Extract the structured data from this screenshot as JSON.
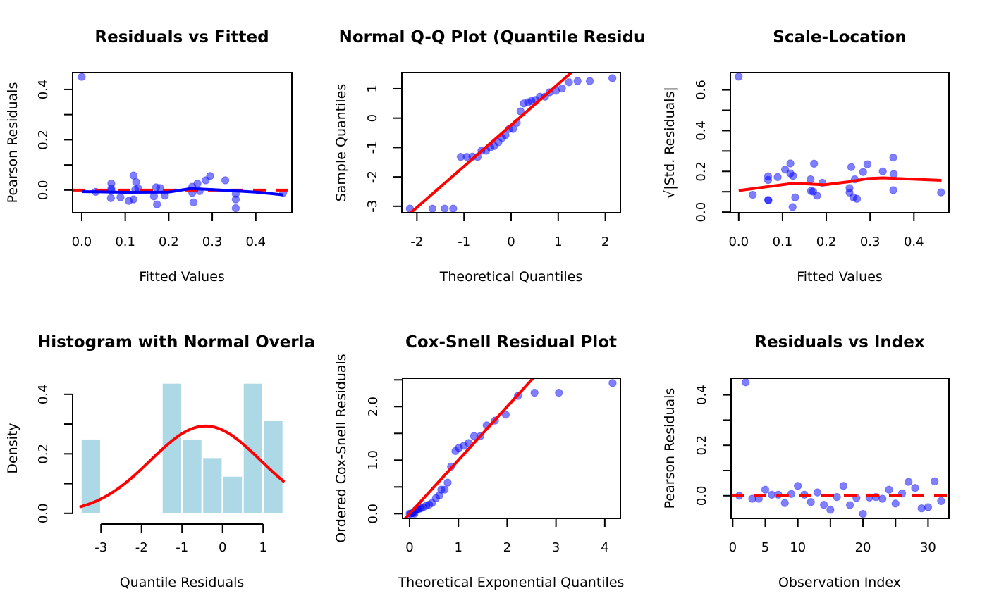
{
  "colors": {
    "point_fill": "#0000FF",
    "point_opacity": 0.5,
    "reference_line": "#FF0000",
    "smooth_line": "#0000FF",
    "histogram_bar": "#ADD8E6"
  },
  "chart_data": [
    {
      "id": "residuals-vs-fitted",
      "type": "scatter",
      "title": "Residuals vs Fitted",
      "xlabel": "Fitted Values",
      "ylabel": "Pearson Residuals",
      "xlim": [
        -0.021,
        0.483
      ],
      "ylim": [
        -0.09,
        0.467
      ],
      "x_ticks": [
        0.0,
        0.1,
        0.2,
        0.3,
        0.4
      ],
      "x_tick_labels": [
        "0.0",
        "0.1",
        "0.2",
        "0.3",
        "0.4"
      ],
      "y_ticks": [
        0.0,
        0.1,
        0.2,
        0.3,
        0.4
      ],
      "y_tick_labels": [
        "0.0",
        "",
        "0.2",
        "",
        "0.4"
      ],
      "grid": false,
      "points": [
        [
          0.0,
          0.45
        ],
        [
          0.032,
          -0.007
        ],
        [
          0.068,
          0.026
        ],
        [
          0.068,
          0.006
        ],
        [
          0.068,
          -0.002
        ],
        [
          0.067,
          -0.032
        ],
        [
          0.089,
          -0.029
        ],
        [
          0.108,
          -0.043
        ],
        [
          0.119,
          -0.037
        ],
        [
          0.119,
          0.058
        ],
        [
          0.125,
          0.032
        ],
        [
          0.13,
          0.006
        ],
        [
          0.123,
          0.002
        ],
        [
          0.166,
          -0.025
        ],
        [
          0.171,
          0.011
        ],
        [
          0.18,
          0.008
        ],
        [
          0.173,
          -0.057
        ],
        [
          0.191,
          -0.022
        ],
        [
          0.254,
          0.013
        ],
        [
          0.254,
          -0.011
        ],
        [
          0.257,
          -0.049
        ],
        [
          0.266,
          0.026
        ],
        [
          0.271,
          -0.004
        ],
        [
          0.285,
          0.039
        ],
        [
          0.295,
          0.056
        ],
        [
          0.33,
          0.039
        ],
        [
          0.354,
          -0.015
        ],
        [
          0.354,
          -0.037
        ],
        [
          0.354,
          -0.072
        ],
        [
          0.463,
          -0.011
        ]
      ],
      "reference_line": {
        "kind": "horizontal",
        "y": 0,
        "style": "dashed"
      },
      "smooth_line": [
        [
          0.0,
          -0.006
        ],
        [
          0.1,
          -0.009
        ],
        [
          0.2,
          -0.008
        ],
        [
          0.25,
          0.006
        ],
        [
          0.3,
          0.002
        ],
        [
          0.4,
          -0.008
        ],
        [
          0.463,
          -0.019
        ]
      ]
    },
    {
      "id": "normal-qq",
      "type": "scatter",
      "title": "Normal Q-Q Plot (Quantile Residu",
      "xlabel": "Theoretical Quantiles",
      "ylabel": "Sample Quantiles",
      "xlim": [
        -2.32,
        2.32
      ],
      "ylim": [
        -3.22,
        1.55
      ],
      "x_ticks": [
        -2,
        -1,
        0,
        1,
        2
      ],
      "x_tick_labels": [
        "-2",
        "-1",
        "0",
        "1",
        "2"
      ],
      "y_ticks": [
        -3,
        -2,
        -1,
        0,
        1
      ],
      "y_tick_labels": [
        "-3",
        "-2",
        "-1",
        "0",
        "1"
      ],
      "grid": false,
      "points": [
        [
          -2.15,
          -3.08
        ],
        [
          -1.67,
          -3.08
        ],
        [
          -1.41,
          -3.08
        ],
        [
          -1.23,
          -3.08
        ],
        [
          -1.07,
          -1.32
        ],
        [
          -0.94,
          -1.32
        ],
        [
          -0.82,
          -1.31
        ],
        [
          -0.71,
          -1.32
        ],
        [
          -0.63,
          -1.11
        ],
        [
          -0.53,
          -1.11
        ],
        [
          -0.44,
          -1.0
        ],
        [
          -0.36,
          -0.95
        ],
        [
          -0.27,
          -0.82
        ],
        [
          -0.19,
          -0.67
        ],
        [
          -0.12,
          -0.58
        ],
        [
          -0.04,
          -0.37
        ],
        [
          0.04,
          -0.37
        ],
        [
          0.12,
          -0.16
        ],
        [
          0.2,
          0.23
        ],
        [
          0.27,
          0.5
        ],
        [
          0.36,
          0.54
        ],
        [
          0.43,
          0.58
        ],
        [
          0.52,
          0.62
        ],
        [
          0.61,
          0.73
        ],
        [
          0.72,
          0.73
        ],
        [
          0.82,
          0.88
        ],
        [
          0.95,
          0.93
        ],
        [
          1.08,
          1.01
        ],
        [
          1.23,
          1.22
        ],
        [
          1.41,
          1.26
        ],
        [
          1.67,
          1.26
        ],
        [
          2.15,
          1.36
        ]
      ],
      "reference_line": {
        "kind": "abline",
        "intercept": -0.24,
        "slope": 1.4,
        "style": "solid"
      }
    },
    {
      "id": "scale-location",
      "type": "scatter",
      "title": "Scale-Location",
      "xlabel": "Fitted Values",
      "ylabel": "√|Std. Residuals|",
      "xlim": [
        -0.019,
        0.48
      ],
      "ylim": [
        -0.003,
        0.685
      ],
      "x_ticks": [
        0.0,
        0.1,
        0.2,
        0.3,
        0.4
      ],
      "x_tick_labels": [
        "0.0",
        "0.1",
        "0.2",
        "0.3",
        "0.4"
      ],
      "y_ticks": [
        0.0,
        0.1,
        0.2,
        0.3,
        0.4,
        0.5,
        0.6
      ],
      "y_tick_labels": [
        "0.0",
        "",
        "0.2",
        "",
        "0.4",
        "",
        "0.6"
      ],
      "grid": false,
      "points": [
        [
          0.0,
          0.665
        ],
        [
          0.032,
          0.085
        ],
        [
          0.067,
          0.176
        ],
        [
          0.067,
          0.158
        ],
        [
          0.067,
          0.06
        ],
        [
          0.068,
          0.058
        ],
        [
          0.089,
          0.172
        ],
        [
          0.106,
          0.209
        ],
        [
          0.118,
          0.239
        ],
        [
          0.118,
          0.19
        ],
        [
          0.124,
          0.178
        ],
        [
          0.129,
          0.072
        ],
        [
          0.123,
          0.025
        ],
        [
          0.164,
          0.161
        ],
        [
          0.165,
          0.104
        ],
        [
          0.17,
          0.101
        ],
        [
          0.172,
          0.238
        ],
        [
          0.179,
          0.081
        ],
        [
          0.191,
          0.144
        ],
        [
          0.253,
          0.118
        ],
        [
          0.253,
          0.096
        ],
        [
          0.257,
          0.221
        ],
        [
          0.265,
          0.161
        ],
        [
          0.262,
          0.072
        ],
        [
          0.27,
          0.065
        ],
        [
          0.284,
          0.197
        ],
        [
          0.294,
          0.235
        ],
        [
          0.329,
          0.2
        ],
        [
          0.353,
          0.268
        ],
        [
          0.354,
          0.187
        ],
        [
          0.353,
          0.108
        ],
        [
          0.462,
          0.097
        ]
      ],
      "smooth_line": [
        [
          0.0,
          0.106
        ],
        [
          0.126,
          0.142
        ],
        [
          0.195,
          0.134
        ],
        [
          0.255,
          0.15
        ],
        [
          0.295,
          0.165
        ],
        [
          0.33,
          0.168
        ],
        [
          0.463,
          0.156
        ]
      ]
    },
    {
      "id": "histogram-normal-overlay",
      "type": "bar",
      "title": "Histogram with Normal Overla",
      "xlabel": "Quantile Residuals",
      "ylabel": "Density",
      "xlim": [
        -3.7,
        1.71
      ],
      "ylim": [
        -0.017,
        0.454
      ],
      "x_ticks": [
        -3,
        -2,
        -1,
        0,
        1
      ],
      "x_tick_labels": [
        "-3",
        "-2",
        "-1",
        "0",
        "1"
      ],
      "y_ticks": [
        0.0,
        0.1,
        0.2,
        0.3,
        0.4
      ],
      "y_tick_labels": [
        "0.0",
        "",
        "0.2",
        "",
        "0.4"
      ],
      "grid": false,
      "bins": [
        {
          "from": -3.5,
          "to": -3.0,
          "density": 0.25
        },
        {
          "from": -3.0,
          "to": -2.5,
          "density": 0.0
        },
        {
          "from": -2.5,
          "to": -2.0,
          "density": 0.0
        },
        {
          "from": -2.0,
          "to": -1.5,
          "density": 0.0
        },
        {
          "from": -1.5,
          "to": -1.0,
          "density": 0.4375
        },
        {
          "from": -1.0,
          "to": -0.5,
          "density": 0.25
        },
        {
          "from": -0.5,
          "to": 0.0,
          "density": 0.1875
        },
        {
          "from": 0.0,
          "to": 0.5,
          "density": 0.125
        },
        {
          "from": 0.5,
          "to": 1.0,
          "density": 0.4375
        },
        {
          "from": 1.0,
          "to": 1.5,
          "density": 0.3125
        }
      ],
      "normal_overlay": {
        "mean": -0.42,
        "sd": 1.36,
        "from": -3.5,
        "to": 1.5
      }
    },
    {
      "id": "cox-snell",
      "type": "scatter",
      "title": "Cox-Snell Residual Plot",
      "xlabel": "Theoretical Exponential Quantiles",
      "ylabel": "Ordered Cox-Snell Residuals",
      "xlim": [
        -0.144,
        4.32
      ],
      "ylim": [
        -0.088,
        2.53
      ],
      "x_ticks": [
        0,
        1,
        2,
        3,
        4
      ],
      "x_tick_labels": [
        "0",
        "1",
        "2",
        "3",
        "4"
      ],
      "y_ticks": [
        0.0,
        0.5,
        1.0,
        1.5,
        2.0,
        2.5
      ],
      "y_tick_labels": [
        "0.0",
        "",
        "1.0",
        "",
        "2.0",
        ""
      ],
      "grid": false,
      "points": [
        [
          0.0,
          0.0
        ],
        [
          0.03,
          0.0
        ],
        [
          0.06,
          0.01
        ],
        [
          0.08,
          0.02
        ],
        [
          0.1,
          0.0
        ],
        [
          0.13,
          0.07
        ],
        [
          0.16,
          0.08
        ],
        [
          0.19,
          0.09
        ],
        [
          0.23,
          0.1
        ],
        [
          0.28,
          0.12
        ],
        [
          0.34,
          0.15
        ],
        [
          0.4,
          0.17
        ],
        [
          0.46,
          0.2
        ],
        [
          0.54,
          0.29
        ],
        [
          0.61,
          0.34
        ],
        [
          0.65,
          0.45
        ],
        [
          0.72,
          0.45
        ],
        [
          0.78,
          0.58
        ],
        [
          0.85,
          0.88
        ],
        [
          0.94,
          1.17
        ],
        [
          1.01,
          1.23
        ],
        [
          1.11,
          1.27
        ],
        [
          1.21,
          1.32
        ],
        [
          1.32,
          1.45
        ],
        [
          1.45,
          1.45
        ],
        [
          1.58,
          1.65
        ],
        [
          1.75,
          1.74
        ],
        [
          1.97,
          1.85
        ],
        [
          2.22,
          2.2
        ],
        [
          2.56,
          2.26
        ],
        [
          3.06,
          2.26
        ],
        [
          4.16,
          2.44
        ]
      ],
      "reference_line": {
        "kind": "abline",
        "intercept": 0,
        "slope": 1,
        "style": "solid"
      }
    },
    {
      "id": "residuals-vs-index",
      "type": "scatter",
      "title": "Residuals vs Index",
      "xlabel": "Observation Index",
      "ylabel": "Pearson Residuals",
      "xlim": [
        -0.25,
        33.2
      ],
      "ylim": [
        -0.09,
        0.466
      ],
      "x_ticks": [
        0,
        5,
        10,
        15,
        20,
        25,
        30
      ],
      "x_tick_labels": [
        "0",
        "5",
        "10",
        "",
        "20",
        "",
        "30"
      ],
      "y_ticks": [
        0.0,
        0.1,
        0.2,
        0.3,
        0.4
      ],
      "y_tick_labels": [
        "0.0",
        "",
        "0.2",
        "",
        "0.4"
      ],
      "grid": false,
      "points": [
        [
          1,
          0.0
        ],
        [
          2,
          0.45
        ],
        [
          3,
          -0.012
        ],
        [
          4,
          -0.012
        ],
        [
          5,
          0.024
        ],
        [
          6,
          0.004
        ],
        [
          7,
          0.004
        ],
        [
          8,
          -0.029
        ],
        [
          9,
          0.007
        ],
        [
          10,
          0.039
        ],
        [
          11,
          0.004
        ],
        [
          12,
          -0.025
        ],
        [
          13,
          0.013
        ],
        [
          14,
          -0.036
        ],
        [
          15,
          -0.056
        ],
        [
          16,
          -0.005
        ],
        [
          17,
          0.039
        ],
        [
          18,
          -0.037
        ],
        [
          19,
          -0.009
        ],
        [
          20,
          -0.072
        ],
        [
          21,
          -0.007
        ],
        [
          22,
          -0.005
        ],
        [
          23,
          -0.012
        ],
        [
          24,
          0.024
        ],
        [
          25,
          -0.031
        ],
        [
          26,
          0.009
        ],
        [
          27,
          0.055
        ],
        [
          28,
          0.031
        ],
        [
          29,
          -0.05
        ],
        [
          30,
          -0.045
        ],
        [
          31,
          0.057
        ],
        [
          32,
          -0.021
        ]
      ],
      "reference_line": {
        "kind": "horizontal",
        "y": 0,
        "style": "dashed"
      }
    }
  ]
}
